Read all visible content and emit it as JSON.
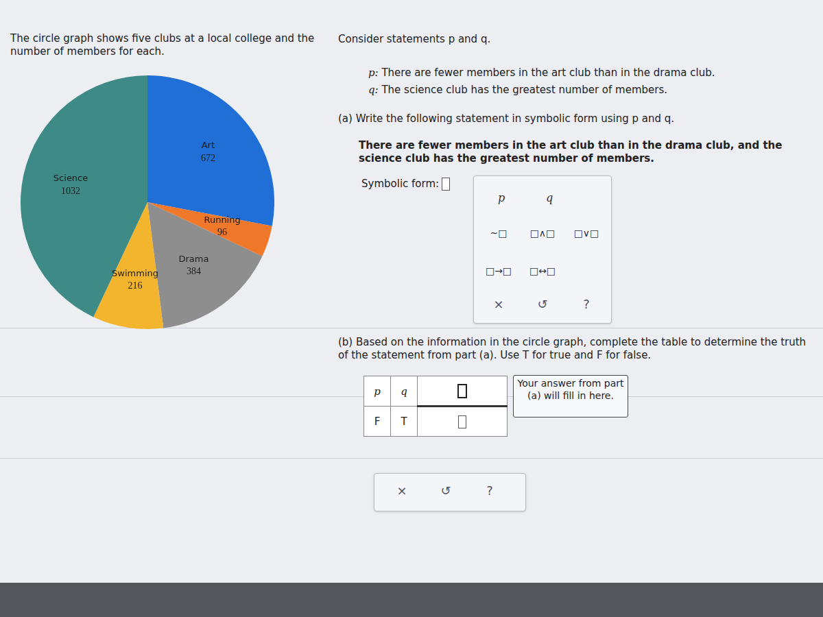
{
  "header": {
    "text": "The circle graph shows five clubs at a local college and the number of members for each."
  },
  "chart_data": {
    "type": "pie",
    "categories": [
      "Art",
      "Running",
      "Drama",
      "Swimming",
      "Science"
    ],
    "values": [
      672,
      96,
      384,
      216,
      1032
    ],
    "colors": [
      "#1f6fd6",
      "#f0782a",
      "#8e8e8e",
      "#f4b52e",
      "#3e8a86"
    ],
    "data_labels": true
  },
  "statements": {
    "intro": "Consider statements p and q.",
    "p": {
      "label": "p:",
      "text": "There are fewer members in the art club than in the drama club."
    },
    "q": {
      "label": "q:",
      "text": "The science club has the greatest number of members."
    }
  },
  "part_a": {
    "prompt": "(a) Write the following statement in symbolic form using p and q.",
    "statement": "There are fewer members in the art club than in the drama club, and the science club has the greatest number of members.",
    "symbolic_form_label": "Symbolic form:",
    "keypad": {
      "variables": [
        "p",
        "q"
      ],
      "operators": [
        "~□",
        "□∧□",
        "□∨□",
        "□→□",
        "□↔□"
      ],
      "controls": [
        "×",
        "↺",
        "?"
      ]
    }
  },
  "part_b": {
    "prompt": "(b) Based on the information in the circle graph, complete the table to determine the truth of the statement from part (a). Use T for true and F for false.",
    "table": {
      "header": [
        "p",
        "q"
      ],
      "rows": [
        [
          "F",
          "T"
        ]
      ]
    },
    "callout": "Your answer from part (a) will fill in here.",
    "controls": [
      "×",
      "↺",
      "?"
    ]
  }
}
